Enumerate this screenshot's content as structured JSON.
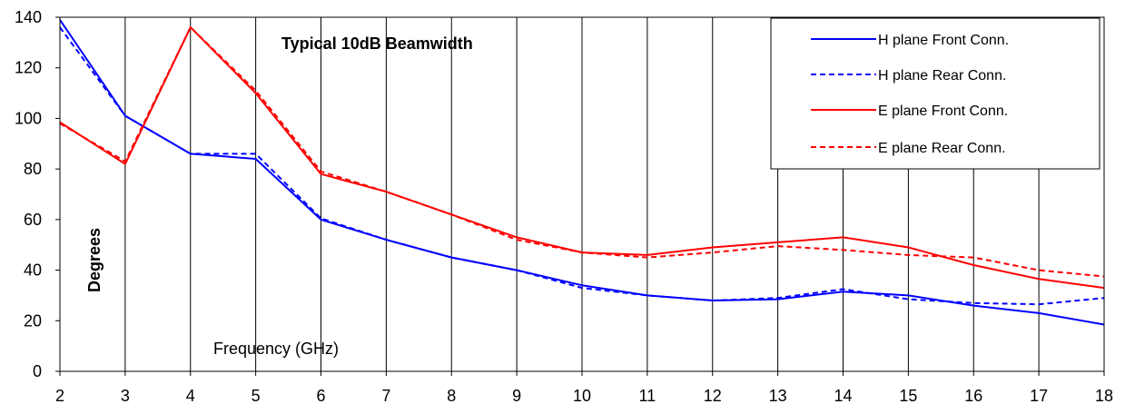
{
  "chart_data": {
    "type": "line",
    "title": "Typical 10dB Beamwidth",
    "xlabel": "Frequency  (GHz)",
    "ylabel": "Degrees",
    "x": [
      2,
      3,
      4,
      5,
      6,
      7,
      8,
      9,
      10,
      11,
      12,
      13,
      14,
      15,
      16,
      17,
      18
    ],
    "xlim": [
      2,
      18
    ],
    "ylim": [
      0,
      140
    ],
    "xticks": [
      "2",
      "3",
      "4",
      "5",
      "6",
      "7",
      "8",
      "9",
      "10",
      "11",
      "12",
      "13",
      "14",
      "15",
      "16",
      "17",
      "18"
    ],
    "yticks": [
      "0",
      "20",
      "40",
      "60",
      "80",
      "100",
      "120",
      "140"
    ],
    "grid": "vertical",
    "legend_position": "top-right",
    "series": [
      {
        "name": "H plane Front Conn.",
        "color": "#0000ff",
        "dash": "solid",
        "values": [
          139,
          101,
          86,
          84,
          60,
          52,
          45,
          40,
          34,
          30,
          28,
          28.5,
          31.5,
          30,
          26,
          23,
          18.5
        ]
      },
      {
        "name": "H plane Rear Conn.",
        "color": "#0000ff",
        "dash": "dashed",
        "values": [
          136,
          101,
          86,
          86,
          60.5,
          52,
          45,
          40,
          33,
          30,
          28,
          29,
          32.5,
          28.5,
          27,
          26.5,
          29
        ]
      },
      {
        "name": "E plane Front Conn.",
        "color": "#ff0000",
        "dash": "solid",
        "values": [
          98.5,
          82,
          136,
          110,
          78,
          71,
          62,
          53,
          47,
          46,
          49,
          51,
          53,
          49,
          42,
          36.5,
          33
        ]
      },
      {
        "name": "E plane Rear Conn.",
        "color": "#ff0000",
        "dash": "dashed",
        "values": [
          98,
          83,
          136,
          111,
          79,
          71,
          62,
          52,
          47,
          45,
          47,
          49.5,
          48,
          46,
          45,
          40,
          37.5
        ]
      }
    ]
  }
}
